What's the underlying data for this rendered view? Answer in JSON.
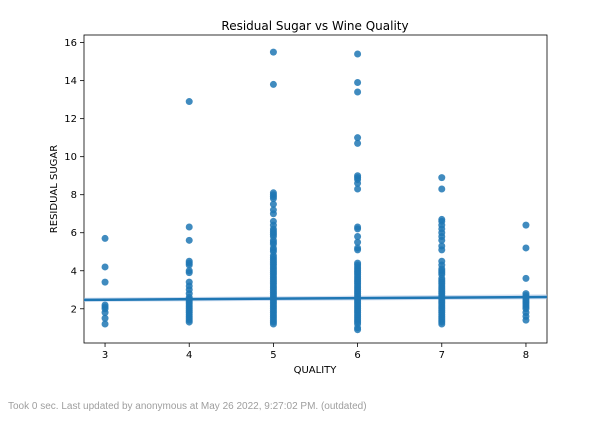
{
  "chart_data": {
    "type": "scatter",
    "title": "Residual Sugar vs Wine Quality",
    "xlabel": "QUALITY",
    "ylabel": "RESIDUAL SUGAR",
    "xlim": [
      2.75,
      8.25
    ],
    "ylim": [
      0.2,
      16.4
    ],
    "xticks": [
      3,
      4,
      5,
      6,
      7,
      8
    ],
    "yticks": [
      2,
      4,
      6,
      8,
      10,
      12,
      14,
      16
    ],
    "grid": false,
    "point_color": "#1f77b4",
    "line_color": "#1f77b4",
    "band_color": "#aec7e8",
    "regression": {
      "x": [
        2.75,
        8.25
      ],
      "y": [
        2.47,
        2.62
      ],
      "ci_lower": [
        2.36,
        2.5
      ],
      "ci_upper": [
        2.58,
        2.76
      ]
    },
    "points": [
      {
        "x": 3,
        "y": [
          1.2,
          1.5,
          1.8,
          2.0,
          2.1,
          2.2,
          3.4,
          4.2,
          5.7
        ]
      },
      {
        "x": 4,
        "y": [
          1.3,
          1.4,
          1.5,
          1.6,
          1.7,
          1.8,
          1.9,
          2.0,
          2.1,
          2.2,
          2.3,
          2.4,
          2.5,
          2.6,
          2.8,
          3.0,
          3.2,
          3.4,
          3.9,
          4.0,
          4.3,
          4.4,
          4.5,
          5.6,
          6.3,
          12.9
        ]
      },
      {
        "x": 5,
        "y": [
          1.2,
          1.3,
          1.4,
          1.5,
          1.6,
          1.7,
          1.8,
          1.9,
          2.0,
          2.1,
          2.2,
          2.3,
          2.4,
          2.5,
          2.6,
          2.7,
          2.8,
          2.9,
          3.0,
          3.1,
          3.2,
          3.3,
          3.4,
          3.5,
          3.6,
          3.7,
          3.8,
          3.9,
          4.0,
          4.1,
          4.2,
          4.3,
          4.4,
          4.5,
          4.6,
          4.7,
          4.8,
          5.0,
          5.1,
          5.2,
          5.4,
          5.5,
          5.6,
          5.8,
          5.9,
          6.0,
          6.1,
          6.2,
          6.4,
          6.6,
          7.0,
          7.2,
          7.5,
          7.8,
          7.9,
          8.0,
          8.1,
          13.8,
          15.5
        ]
      },
      {
        "x": 6,
        "y": [
          0.9,
          1.0,
          1.2,
          1.3,
          1.4,
          1.5,
          1.6,
          1.7,
          1.8,
          1.9,
          2.0,
          2.1,
          2.2,
          2.3,
          2.4,
          2.5,
          2.6,
          2.7,
          2.8,
          2.9,
          3.0,
          3.1,
          3.2,
          3.3,
          3.4,
          3.5,
          3.6,
          3.7,
          3.8,
          3.9,
          4.0,
          4.1,
          4.2,
          4.3,
          4.4,
          5.1,
          5.2,
          5.5,
          5.8,
          6.2,
          6.3,
          8.3,
          8.6,
          8.8,
          8.9,
          9.0,
          10.7,
          11.0,
          13.4,
          13.9,
          15.4
        ]
      },
      {
        "x": 7,
        "y": [
          1.2,
          1.3,
          1.4,
          1.5,
          1.6,
          1.7,
          1.8,
          1.9,
          2.0,
          2.1,
          2.2,
          2.3,
          2.4,
          2.5,
          2.6,
          2.7,
          2.8,
          2.9,
          3.0,
          3.1,
          3.2,
          3.3,
          3.4,
          3.5,
          3.6,
          3.8,
          3.9,
          4.0,
          4.1,
          4.3,
          4.5,
          5.1,
          5.3,
          5.6,
          5.8,
          6.0,
          6.2,
          6.4,
          6.6,
          6.7,
          8.3,
          8.9
        ]
      },
      {
        "x": 8,
        "y": [
          1.4,
          1.6,
          1.8,
          2.0,
          2.1,
          2.2,
          2.3,
          2.4,
          2.5,
          2.6,
          2.7,
          2.8,
          3.6,
          5.2,
          6.4
        ]
      }
    ]
  },
  "footer": {
    "status_text": "Took 0 sec. Last updated by anonymous at May 26 2022, 9:27:02 PM. (outdated)"
  }
}
